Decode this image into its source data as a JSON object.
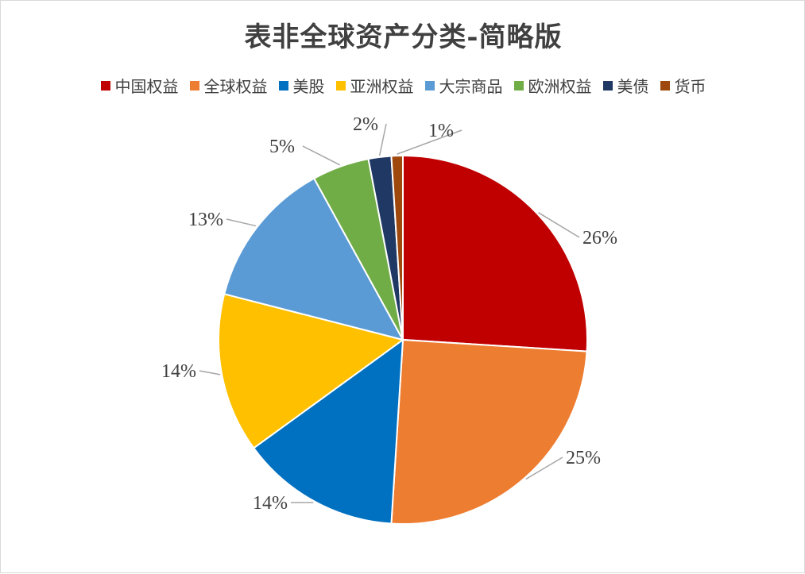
{
  "chart_data": {
    "type": "pie",
    "title": "表非全球资产分类-简略版",
    "categories": [
      "中国权益",
      "全球权益",
      "美股",
      "亚洲权益",
      "大宗商品",
      "欧洲权益",
      "美债",
      "货币"
    ],
    "values": [
      26,
      25,
      14,
      14,
      13,
      5,
      2,
      1
    ],
    "labels": [
      "26%",
      "25%",
      "14%",
      "14%",
      "13%",
      "5%",
      "2%",
      "1%"
    ],
    "colors": [
      "#C00000",
      "#ED7D31",
      "#0070C0",
      "#FFC000",
      "#5B9BD5",
      "#70AD47",
      "#203864",
      "#9E480E"
    ],
    "legend_position": "top"
  }
}
